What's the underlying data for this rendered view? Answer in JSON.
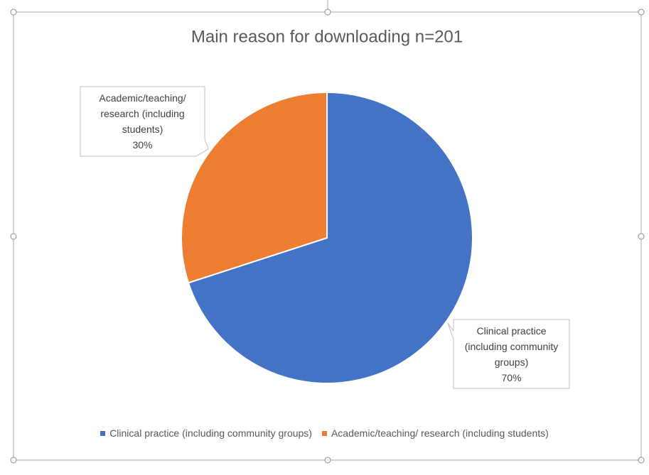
{
  "chart_data": {
    "type": "pie",
    "title": "Main reason for downloading n=201",
    "categories": [
      "Clinical practice (including community groups)",
      "Academic/teaching/ research (including students)"
    ],
    "values": [
      70,
      30
    ],
    "value_labels": [
      "70%",
      "30%"
    ],
    "colors": [
      "#4472c4",
      "#ed7d31"
    ]
  }
}
